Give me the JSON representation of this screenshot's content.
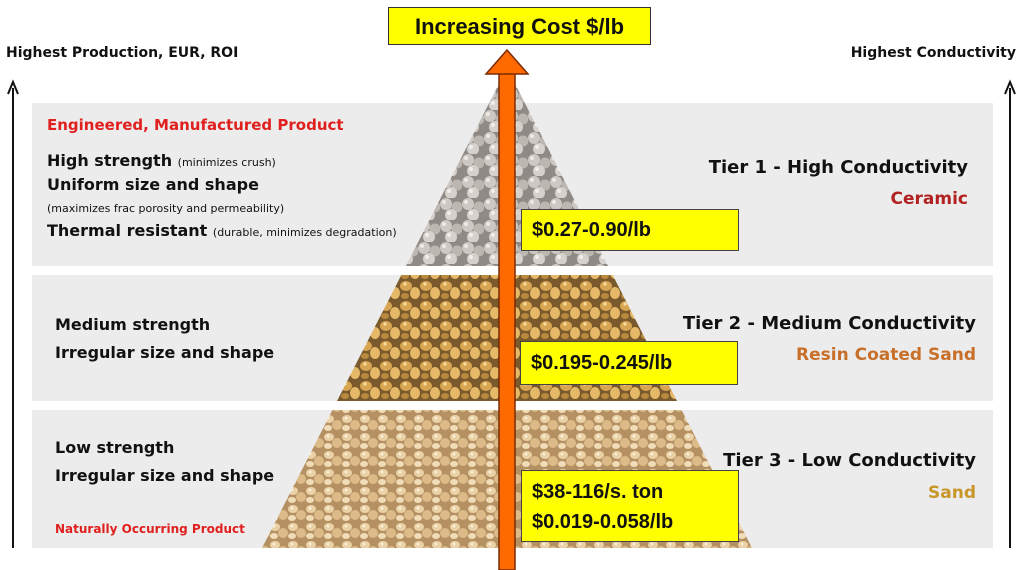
{
  "title": "Increasing Cost $/lb",
  "left_axis_label": "Highest Production, EUR, ROI",
  "right_axis_label": "Highest Conductivity",
  "tiers": [
    {
      "tier_label": "Tier 1 - High Conductivity",
      "material": "Ceramic",
      "material_color": "#b22222",
      "price_lines": [
        "$0.27-0.90/lb"
      ],
      "header": "Engineered, Manufactured Product",
      "props": [
        {
          "bold": "High strength",
          "note": "(minimizes crush)"
        },
        {
          "bold": "Uniform size and shape",
          "note": ""
        },
        {
          "bold": "",
          "note": "(maximizes frac porosity and permeability)"
        },
        {
          "bold": "Thermal resistant",
          "note": "(durable, minimizes degradation)"
        }
      ]
    },
    {
      "tier_label": "Tier 2 - Medium Conductivity",
      "material": "Resin Coated Sand",
      "material_color": "#c8702a",
      "price_lines": [
        "$0.195-0.245/lb"
      ],
      "props": [
        "Medium strength",
        "Irregular size and shape"
      ]
    },
    {
      "tier_label": "Tier 3 - Low Conductivity",
      "material": "Sand",
      "material_color": "#c9962a",
      "price_lines": [
        "$38-116/s. ton",
        "$0.019-0.058/lb"
      ],
      "props": [
        "Low strength",
        "Irregular size and shape"
      ],
      "footer": "Naturally Occurring Product"
    }
  ],
  "colors": {
    "band": "#ececec",
    "highlight": "#ffff00",
    "arrow": "#ff6a00",
    "ceramic": "#b9b3ad",
    "resin": "#c99a4a",
    "sand": "#d8b888"
  }
}
